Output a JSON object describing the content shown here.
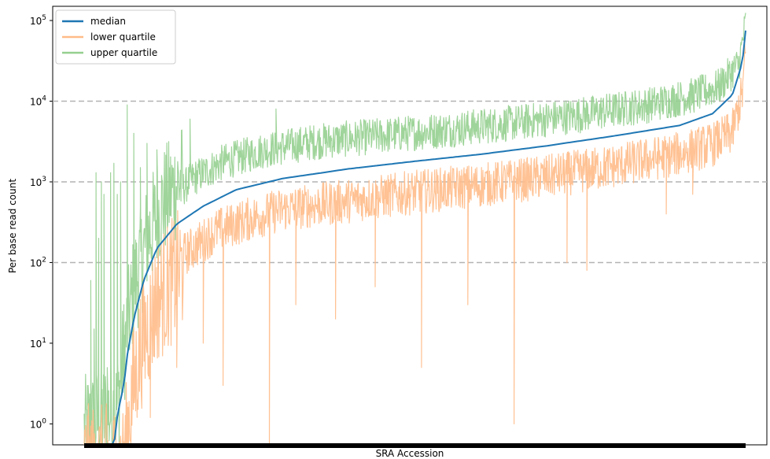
{
  "chart_data": {
    "type": "line",
    "xlabel": "SRA Accession",
    "ylabel": "Per base read count",
    "y_scale": "log",
    "ylim": [
      0.55,
      150000
    ],
    "y_ticks": [
      {
        "value": 1,
        "base": "10",
        "exp": "0"
      },
      {
        "value": 10,
        "base": "10",
        "exp": "1"
      },
      {
        "value": 100,
        "base": "10",
        "exp": "2"
      },
      {
        "value": 1000,
        "base": "10",
        "exp": "3"
      },
      {
        "value": 10000,
        "base": "10",
        "exp": "4"
      },
      {
        "value": 100000,
        "base": "10",
        "exp": "5"
      }
    ],
    "hlines": [
      100,
      1000,
      10000
    ],
    "hline_style": "dashed",
    "x_tick_labels": "dense unlabeled accession ticks",
    "legend": {
      "placement": "top-left",
      "entries": [
        "median",
        "lower quartile",
        "upper quartile"
      ]
    },
    "series": [
      {
        "name": "median",
        "color": "#1f77b4",
        "points": [
          [
            0.0,
            0.5
          ],
          [
            0.045,
            0.5
          ],
          [
            0.048,
            1.0
          ],
          [
            0.055,
            2.0
          ],
          [
            0.06,
            3.0
          ],
          [
            0.065,
            7.0
          ],
          [
            0.075,
            20
          ],
          [
            0.09,
            60
          ],
          [
            0.11,
            150
          ],
          [
            0.14,
            300
          ],
          [
            0.18,
            500
          ],
          [
            0.23,
            800
          ],
          [
            0.3,
            1100
          ],
          [
            0.4,
            1450
          ],
          [
            0.5,
            1800
          ],
          [
            0.6,
            2200
          ],
          [
            0.7,
            2800
          ],
          [
            0.8,
            3700
          ],
          [
            0.9,
            5000
          ],
          [
            0.95,
            7000
          ],
          [
            0.98,
            12000
          ],
          [
            0.995,
            30000
          ],
          [
            1.0,
            75000
          ]
        ]
      },
      {
        "name": "lower quartile",
        "color": "#ffbb88",
        "points": [
          [
            0.0,
            0.5
          ],
          [
            0.06,
            0.5
          ],
          [
            0.07,
            3
          ],
          [
            0.085,
            15
          ],
          [
            0.11,
            60
          ],
          [
            0.15,
            150
          ],
          [
            0.2,
            300
          ],
          [
            0.25,
            420
          ],
          [
            0.3,
            550
          ],
          [
            0.4,
            700
          ],
          [
            0.5,
            900
          ],
          [
            0.6,
            1100
          ],
          [
            0.7,
            1400
          ],
          [
            0.8,
            1900
          ],
          [
            0.9,
            2700
          ],
          [
            0.95,
            3500
          ],
          [
            0.98,
            5000
          ],
          [
            0.995,
            15000
          ],
          [
            1.0,
            50000
          ]
        ]
      },
      {
        "name": "upper quartile",
        "color": "#95cf8f",
        "points": [
          [
            0.0,
            0.5
          ],
          [
            0.05,
            1.0
          ],
          [
            0.06,
            5
          ],
          [
            0.075,
            30
          ],
          [
            0.095,
            120
          ],
          [
            0.12,
            350
          ],
          [
            0.16,
            900
          ],
          [
            0.21,
            1500
          ],
          [
            0.27,
            2100
          ],
          [
            0.35,
            2700
          ],
          [
            0.45,
            3200
          ],
          [
            0.55,
            3800
          ],
          [
            0.65,
            4600
          ],
          [
            0.75,
            5800
          ],
          [
            0.85,
            7600
          ],
          [
            0.92,
            10000
          ],
          [
            0.96,
            13000
          ],
          [
            0.99,
            25000
          ],
          [
            1.0,
            80000
          ]
        ]
      }
    ],
    "notable_spikes": {
      "upper quartile": [
        [
          0.004,
          0.5
        ],
        [
          0.006,
          3
        ],
        [
          0.01,
          60
        ],
        [
          0.015,
          15
        ],
        [
          0.018,
          1300
        ],
        [
          0.022,
          200
        ],
        [
          0.026,
          1000
        ],
        [
          0.03,
          700
        ],
        [
          0.035,
          5
        ],
        [
          0.04,
          1300
        ],
        [
          0.045,
          1700
        ],
        [
          0.05,
          700
        ],
        [
          0.055,
          1000
        ],
        [
          0.06,
          3
        ],
        [
          0.065,
          9000
        ],
        [
          0.075,
          4000
        ],
        [
          0.085,
          1500
        ],
        [
          0.095,
          3000
        ],
        [
          0.11,
          2500
        ],
        [
          0.16,
          6000
        ],
        [
          0.29,
          8000
        ]
      ],
      "lower quartile": [
        [
          0.06,
          0.6
        ],
        [
          0.08,
          2
        ],
        [
          0.1,
          1.2
        ],
        [
          0.14,
          5
        ],
        [
          0.18,
          10
        ],
        [
          0.21,
          3
        ],
        [
          0.28,
          0.55
        ],
        [
          0.32,
          30
        ],
        [
          0.38,
          20
        ],
        [
          0.44,
          50
        ],
        [
          0.51,
          5
        ],
        [
          0.58,
          30
        ],
        [
          0.65,
          1.0
        ],
        [
          0.73,
          100
        ],
        [
          0.76,
          80
        ],
        [
          0.88,
          400
        ],
        [
          0.92,
          700
        ]
      ]
    }
  }
}
